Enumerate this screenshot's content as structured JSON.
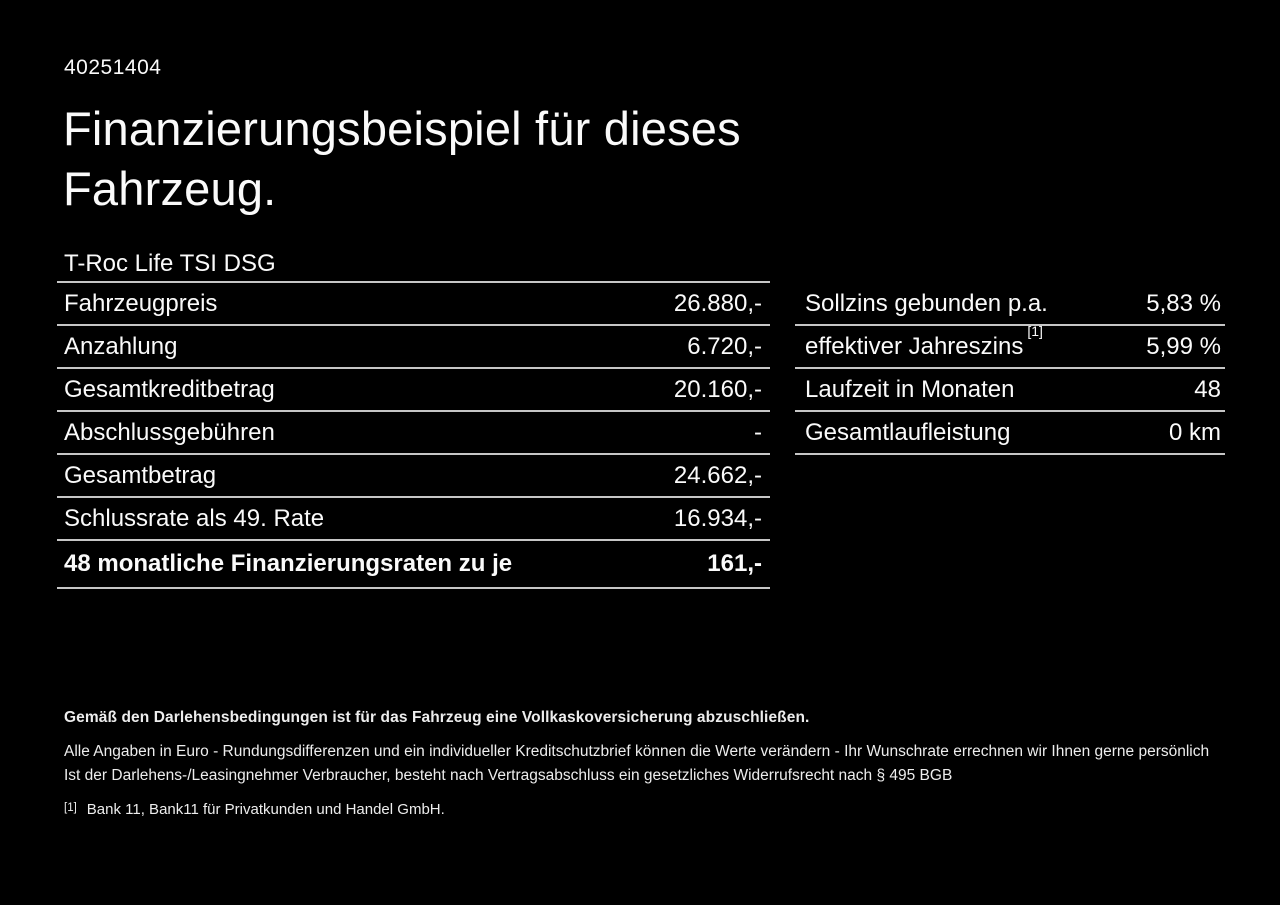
{
  "page": {
    "doc_code": "40251404",
    "title_line1": "Finanzierungsbeispiel für dieses",
    "title_line2": "Fahrzeug.",
    "vehicle_model": "T-Roc Life TSI DSG"
  },
  "finance_table": {
    "rows": [
      {
        "label": "Fahrzeugpreis",
        "value": "26.880,-"
      },
      {
        "label": "Anzahlung",
        "value": "6.720,-"
      },
      {
        "label": "Gesamtkreditbetrag",
        "value": "20.160,-"
      },
      {
        "label": "Abschlussgebühren",
        "value": "-"
      },
      {
        "label": "Gesamtbetrag",
        "value": "24.662,-"
      },
      {
        "label": "Schlussrate als 49. Rate",
        "value": "16.934,-"
      },
      {
        "label": "48 monatliche Finanzierungsraten zu je",
        "value": "161,-"
      }
    ]
  },
  "rate_table": {
    "rows": [
      {
        "label": "Sollzins gebunden p.a.",
        "sup": "",
        "value": "5,83 %"
      },
      {
        "label": "effektiver Jahreszins",
        "sup": "[1]",
        "value": "5,99 %"
      },
      {
        "label": "Laufzeit in Monaten",
        "sup": "",
        "value": "48"
      },
      {
        "label": "Gesamtlaufleistung",
        "sup": "",
        "value": "0 km"
      }
    ]
  },
  "footer": {
    "insurance_note": "Gemäß den Darlehensbedingungen ist für das Fahrzeug eine Vollkaskoversicherung abzuschließen.",
    "note_line1": "Alle Angaben in Euro - Rundungsdifferenzen und ein individueller Kreditschutzbrief können die Werte verändern - Ihr Wunschrate errechnen wir Ihnen gerne persönlich",
    "note_line2": "Ist der Darlehens-/Leasingnehmer Verbraucher, besteht nach Vertragsabschluss ein gesetzliches Widerrufsrecht nach § 495 BGB",
    "footnote_marker": "[1]",
    "footnote_text": "Bank 11, Bank11 für Privatkunden und Handel GmbH."
  },
  "colors": {
    "background": "#000000",
    "text": "#fafafa",
    "divider": "#c6c6c6"
  }
}
